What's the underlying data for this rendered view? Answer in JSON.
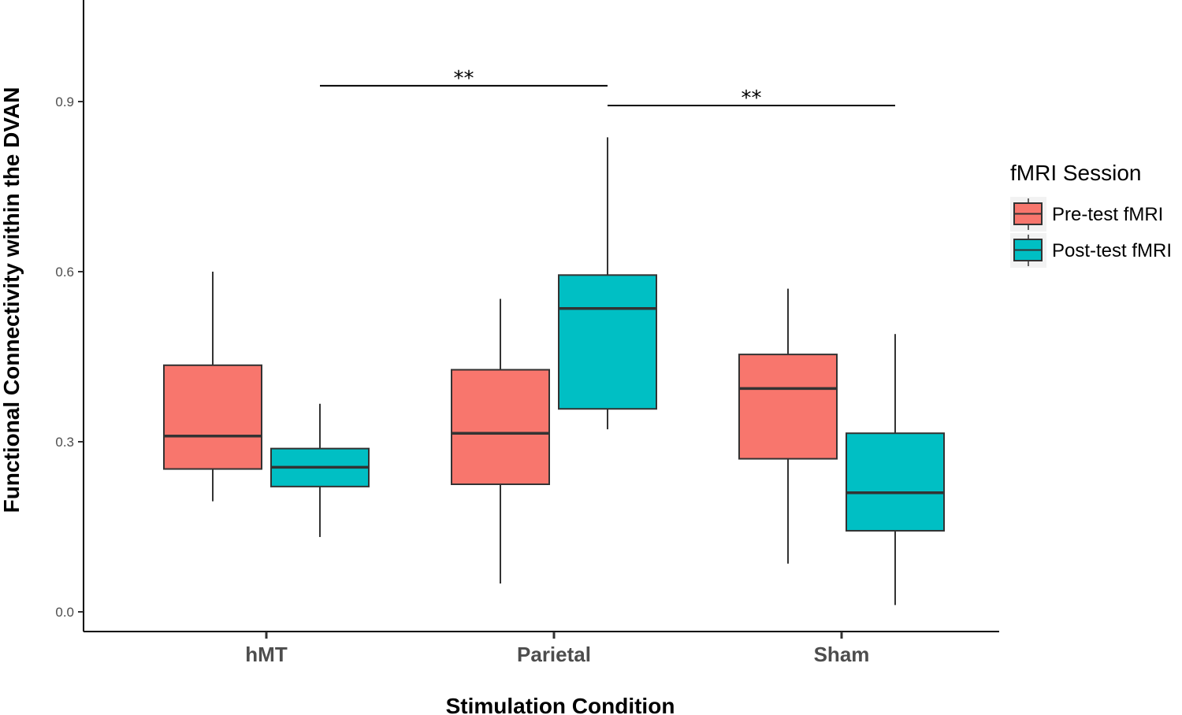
{
  "chart_data": {
    "type": "boxplot",
    "title": "",
    "xlabel": "Stimulation Condition",
    "ylabel": "Functional Connectivity within the DVAN",
    "ylim": [
      -0.035,
      1.075
    ],
    "yticks": [
      0.0,
      0.3,
      0.6,
      0.9
    ],
    "ytick_labels": [
      "0.0",
      "0.3",
      "0.6",
      "0.9"
    ],
    "categories": [
      "hMT",
      "Parietal",
      "Sham"
    ],
    "legend": {
      "title": "fMRI Session",
      "position": "right",
      "entries": [
        "Pre-test fMRI",
        "Post-test fMRI"
      ]
    },
    "colors": {
      "Pre-test fMRI": "#F8766D",
      "Post-test fMRI": "#00BFC4"
    },
    "series": [
      {
        "name": "Pre-test fMRI",
        "boxes": [
          {
            "category": "hMT",
            "min": 0.195,
            "q1": 0.252,
            "median": 0.31,
            "q3": 0.435,
            "max": 0.6
          },
          {
            "category": "Parietal",
            "min": 0.05,
            "q1": 0.225,
            "median": 0.315,
            "q3": 0.427,
            "max": 0.552
          },
          {
            "category": "Sham",
            "min": 0.085,
            "q1": 0.27,
            "median": 0.394,
            "q3": 0.454,
            "max": 0.57
          }
        ]
      },
      {
        "name": "Post-test fMRI",
        "boxes": [
          {
            "category": "hMT",
            "min": 0.132,
            "q1": 0.221,
            "median": 0.255,
            "q3": 0.288,
            "max": 0.367
          },
          {
            "category": "Parietal",
            "min": 0.322,
            "q1": 0.358,
            "median": 0.535,
            "q3": 0.594,
            "max": 0.837
          },
          {
            "category": "Sham",
            "min": 0.012,
            "q1": 0.143,
            "median": 0.21,
            "q3": 0.315,
            "max": 0.49
          }
        ]
      }
    ],
    "annotations": [
      {
        "text": "**",
        "from": "hMT / Post-test fMRI",
        "to": "Parietal / Post-test fMRI",
        "y": 0.928
      },
      {
        "text": "**",
        "from": "Parietal / Post-test fMRI",
        "to": "Sham / Post-test fMRI",
        "y": 0.893
      }
    ]
  }
}
